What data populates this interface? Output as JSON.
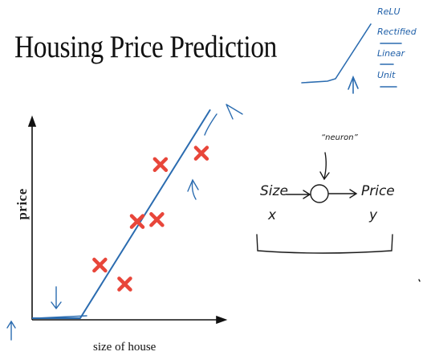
{
  "slide": {
    "title": "Housing Price Prediction",
    "relu_notes": [
      "ReLU",
      "Rectified",
      "Linear",
      "Unit"
    ],
    "neuron_label": "“neuron”",
    "input_label": "Size",
    "input_var": "x",
    "output_label": "Price",
    "output_var": "y"
  },
  "chart_data": {
    "type": "scatter",
    "title": "",
    "xlabel": "size of house",
    "ylabel": "price",
    "grid": false,
    "legend": "none",
    "points": [
      {
        "x": 0.38,
        "y": 0.28
      },
      {
        "x": 0.52,
        "y": 0.18
      },
      {
        "x": 0.59,
        "y": 0.51
      },
      {
        "x": 0.7,
        "y": 0.52
      },
      {
        "x": 0.72,
        "y": 0.81
      },
      {
        "x": 0.95,
        "y": 0.87
      }
    ],
    "fit_line": [
      {
        "x": 0.0,
        "y": 0.0
      },
      {
        "x": 0.27,
        "y": 0.0
      },
      {
        "x": 1.0,
        "y": 1.1
      }
    ],
    "xlim": [
      0,
      1
    ],
    "ylim": [
      0,
      1
    ],
    "marker_color": "#e8463a",
    "line_color": "#2b6cb0"
  }
}
